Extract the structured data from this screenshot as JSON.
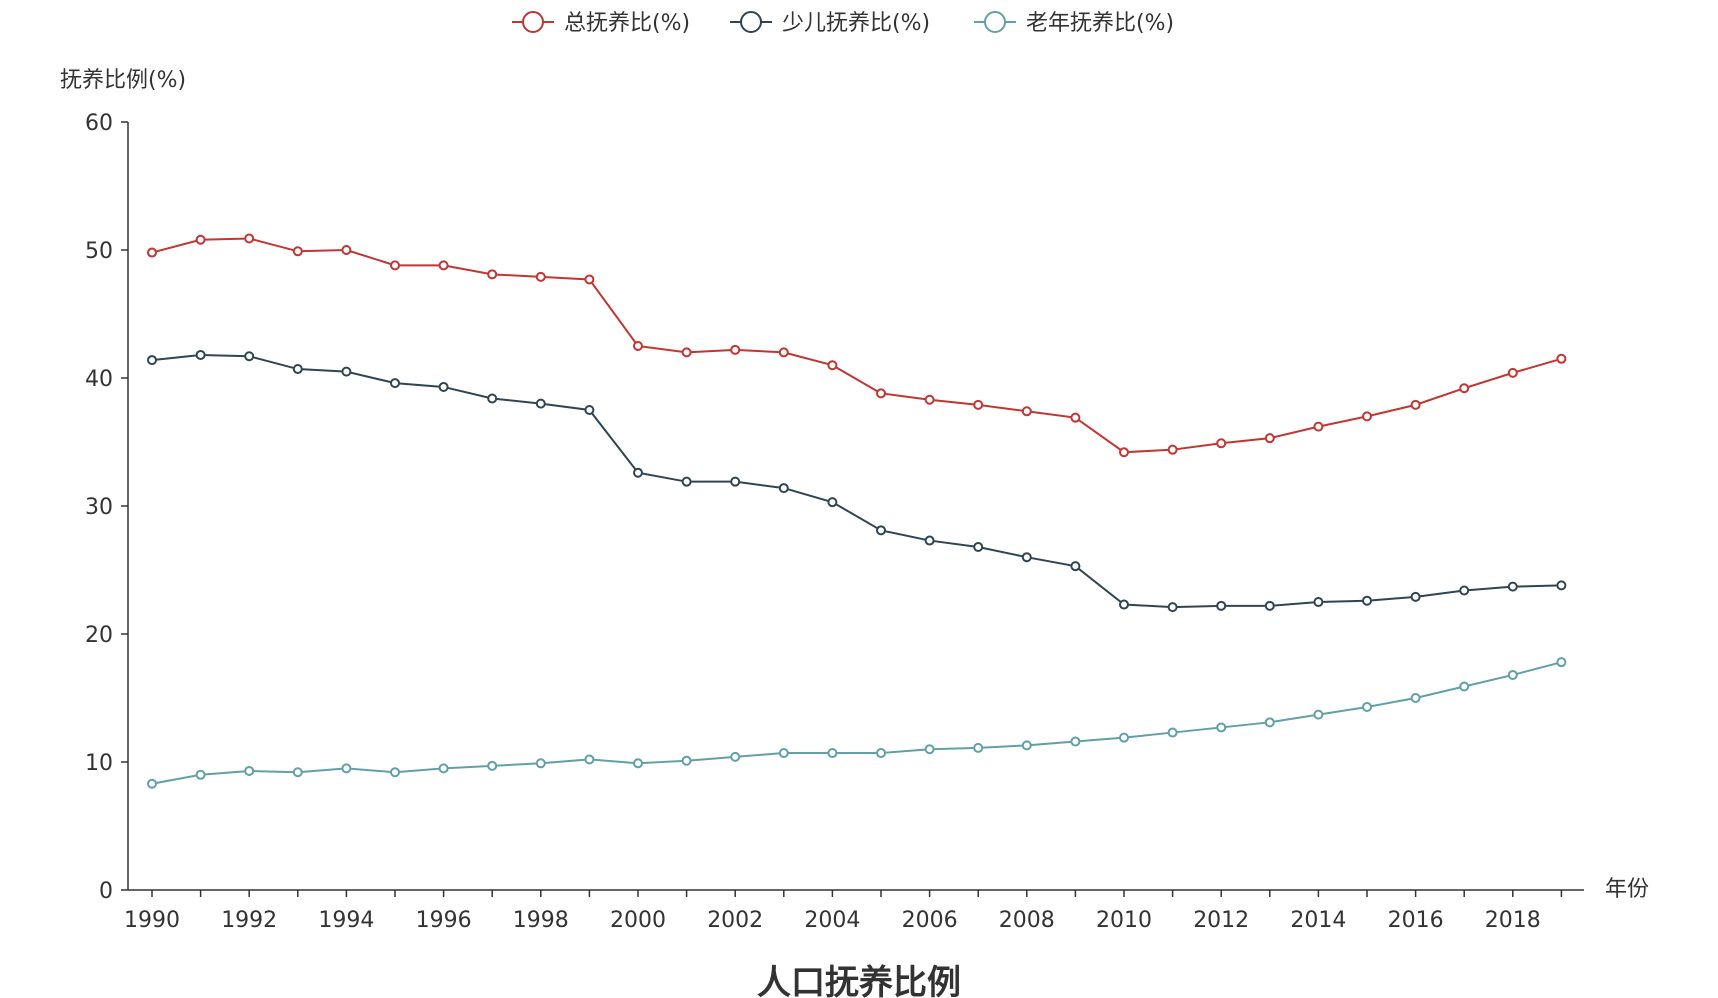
{
  "chart_data": {
    "type": "line",
    "title": "人口抚养比例",
    "xlabel": "年份",
    "ylabel": "抚养比例(%)",
    "ylim": [
      0,
      60
    ],
    "yticks": [
      0,
      10,
      20,
      30,
      40,
      50,
      60
    ],
    "x": [
      1990,
      1991,
      1992,
      1993,
      1994,
      1995,
      1996,
      1997,
      1998,
      1999,
      2000,
      2001,
      2002,
      2003,
      2004,
      2005,
      2006,
      2007,
      2008,
      2009,
      2010,
      2011,
      2012,
      2013,
      2014,
      2015,
      2016,
      2017,
      2018,
      2019
    ],
    "xticks": [
      "1990",
      "1992",
      "1994",
      "1996",
      "1998",
      "2000",
      "2002",
      "2004",
      "2006",
      "2008",
      "2010",
      "2012",
      "2014",
      "2016",
      "2018"
    ],
    "legend_position": "top-center",
    "grid": false,
    "series": [
      {
        "name": "总抚养比(%)",
        "color": "#c23531",
        "values": [
          49.8,
          50.8,
          50.9,
          49.9,
          50.0,
          48.8,
          48.8,
          48.1,
          47.9,
          47.7,
          42.5,
          42.0,
          42.2,
          42.0,
          41.0,
          38.8,
          38.3,
          37.9,
          37.4,
          36.9,
          34.2,
          34.4,
          34.9,
          35.3,
          36.2,
          37.0,
          37.9,
          39.2,
          40.4,
          41.5
        ]
      },
      {
        "name": "少儿抚养比(%)",
        "color": "#2f4554",
        "values": [
          41.4,
          41.8,
          41.7,
          40.7,
          40.5,
          39.6,
          39.3,
          38.4,
          38.0,
          37.5,
          32.6,
          31.9,
          31.9,
          31.4,
          30.3,
          28.1,
          27.3,
          26.8,
          26.0,
          25.3,
          22.3,
          22.1,
          22.2,
          22.2,
          22.5,
          22.6,
          22.9,
          23.4,
          23.7,
          23.8
        ]
      },
      {
        "name": "老年抚养比(%)",
        "color": "#61a0a8",
        "values": [
          8.3,
          9.0,
          9.3,
          9.2,
          9.5,
          9.2,
          9.5,
          9.7,
          9.9,
          10.2,
          9.9,
          10.1,
          10.4,
          10.7,
          10.7,
          10.7,
          11.0,
          11.1,
          11.3,
          11.6,
          11.9,
          12.3,
          12.7,
          13.1,
          13.7,
          14.3,
          15.0,
          15.9,
          16.8,
          17.8
        ]
      }
    ]
  }
}
